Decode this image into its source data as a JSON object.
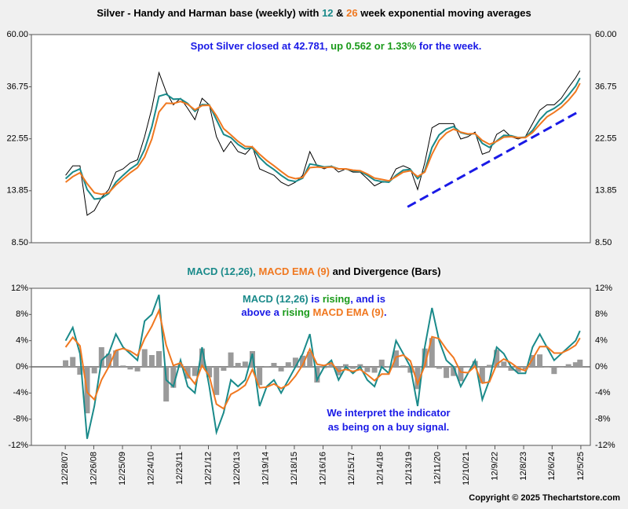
{
  "chart_data": [
    {
      "type": "line",
      "title": [
        {
          "text": "Silver - Handy and Harman base (weekly) with ",
          "color": "#000000"
        },
        {
          "text": "12",
          "color": "#1a8a8a"
        },
        {
          "text": " & ",
          "color": "#000000"
        },
        {
          "text": "26",
          "color": "#f07820"
        },
        {
          "text": " week exponential moving averages",
          "color": "#000000"
        }
      ],
      "annotations": [
        [
          {
            "text": "Spot Silver closed at 42.781, ",
            "color": "#1a1ae6"
          },
          {
            "text": "up 0.562 or 1.33%",
            "color": "#1a9a1a"
          },
          {
            "text": " for the week.",
            "color": "#1a1ae6"
          }
        ]
      ],
      "x": [
        2008,
        2008.25,
        2008.5,
        2008.75,
        2009,
        2009.25,
        2009.5,
        2009.75,
        2010,
        2010.25,
        2010.5,
        2010.75,
        2011,
        2011.25,
        2011.5,
        2011.75,
        2012,
        2012.25,
        2012.5,
        2012.75,
        2013,
        2013.25,
        2013.5,
        2013.75,
        2014,
        2014.25,
        2014.5,
        2014.75,
        2015,
        2015.25,
        2015.5,
        2015.75,
        2016,
        2016.25,
        2016.5,
        2016.75,
        2017,
        2017.25,
        2017.5,
        2017.75,
        2018,
        2018.25,
        2018.5,
        2018.75,
        2019,
        2019.25,
        2019.5,
        2019.75,
        2020,
        2020.25,
        2020.5,
        2020.75,
        2021,
        2021.25,
        2021.5,
        2021.75,
        2022,
        2022.25,
        2022.5,
        2022.75,
        2023,
        2023.25,
        2023.5,
        2023.75,
        2024,
        2024.25,
        2024.5,
        2024.75,
        2025,
        2025.25,
        2025.5,
        2025.75,
        2025.9
      ],
      "xlim": [
        2006.81,
        2026.26
      ],
      "ylim": [
        8.5,
        60
      ],
      "log_scale": true,
      "yticks": [
        {
          "value": 8.5,
          "label": "8.50"
        },
        {
          "value": 13.85,
          "label": "13.85"
        },
        {
          "value": 22.55,
          "label": "22.55"
        },
        {
          "value": 36.75,
          "label": "36.75"
        },
        {
          "value": 60,
          "label": "60.00"
        }
      ],
      "series": [
        {
          "color": "#000000",
          "values": [
            16,
            17.5,
            17.5,
            11,
            11.5,
            13,
            14,
            16.5,
            17,
            18,
            18.5,
            23,
            30,
            42,
            35,
            31,
            33,
            30,
            27,
            33,
            31,
            23,
            20,
            22,
            20,
            19.5,
            21,
            17,
            16.5,
            16,
            15,
            14.5,
            15,
            16,
            20,
            17.5,
            17,
            17.5,
            16.5,
            17,
            16.5,
            16.5,
            15.5,
            14.5,
            15,
            15,
            17,
            17.5,
            17,
            14,
            18,
            25,
            26,
            26,
            26,
            22.5,
            23,
            24,
            19.5,
            20,
            23.5,
            24.5,
            23,
            22.5,
            23,
            26,
            29.5,
            31,
            31,
            33,
            36.5,
            40,
            42.78
          ]
        },
        {
          "color": "#1a8a8a",
          "values": [
            15.5,
            16.5,
            17,
            14,
            12.8,
            12.9,
            13.5,
            15,
            16,
            17,
            17.8,
            20.4,
            25.2,
            33.6,
            34.3,
            32.7,
            32.8,
            31.4,
            29.2,
            31.1,
            31,
            27,
            23.5,
            22.8,
            21.4,
            20.5,
            20.7,
            18.9,
            17.7,
            16.9,
            16,
            15.3,
            15.1,
            15.6,
            17.8,
            17.6,
            17.3,
            17.4,
            17,
            17,
            16.7,
            16.6,
            16,
            15.3,
            15.1,
            15,
            16,
            16.8,
            16.9,
            15.5,
            16.7,
            20.8,
            23.4,
            24.7,
            25.3,
            23.9,
            23.5,
            23.7,
            21.6,
            20.8,
            22.1,
            23.3,
            23.2,
            22.8,
            22.9,
            24.4,
            27,
            29,
            30,
            31.5,
            34,
            37,
            39.9
          ]
        },
        {
          "color": "#f07820",
          "values": [
            15,
            15.8,
            16.4,
            14.8,
            13.6,
            13.4,
            13.6,
            14.6,
            15.5,
            16.4,
            17.2,
            19,
            22.5,
            29,
            31.5,
            31.4,
            32,
            31.2,
            29.6,
            30.8,
            30.9,
            28,
            24.8,
            23.4,
            22,
            21,
            20.9,
            19.5,
            18.4,
            17.5,
            16.6,
            15.8,
            15.5,
            15.7,
            17.2,
            17.3,
            17.2,
            17.3,
            17,
            17,
            16.8,
            16.7,
            16.2,
            15.6,
            15.4,
            15.2,
            15.8,
            16.5,
            16.7,
            15.8,
            16.5,
            19.5,
            22.2,
            23.8,
            24.7,
            24,
            23.6,
            23.7,
            22.2,
            21.4,
            22,
            22.9,
            23,
            22.8,
            22.8,
            23.9,
            25.8,
            27.7,
            28.9,
            30.3,
            32.4,
            35.1,
            38
          ]
        }
      ],
      "trendline": {
        "x": [
          2019.9,
          2025.9
        ],
        "values": [
          11.9,
          29.3
        ],
        "color": "#1a1ae6"
      }
    },
    {
      "type": "line",
      "title": [
        {
          "text": "MACD (12,26), ",
          "color": "#1a8a8a"
        },
        {
          "text": "MACD EMA (9)",
          "color": "#f07820"
        },
        {
          "text": " and Divergence (Bars)",
          "color": "#000000"
        }
      ],
      "annotations": [
        [
          {
            "text": "MACD (12,26)",
            "color": "#1a8a8a"
          },
          {
            "text": " is ",
            "color": "#1a1ae6"
          },
          {
            "text": "rising",
            "color": "#1a9a1a"
          },
          {
            "text": ", and is",
            "color": "#1a1ae6"
          }
        ],
        [
          {
            "text": "above a ",
            "color": "#1a1ae6"
          },
          {
            "text": "rising",
            "color": "#1a9a1a"
          },
          {
            "text": " MACD EMA (9)",
            "color": "#f07820"
          },
          {
            "text": ".",
            "color": "#1a1ae6"
          }
        ],
        [
          {
            "text": "We interpret the indicator",
            "color": "#1a1ae6"
          }
        ],
        [
          {
            "text": "as being on a buy signal.",
            "color": "#1a1ae6"
          }
        ]
      ],
      "x": [
        2008,
        2008.25,
        2008.5,
        2008.75,
        2009,
        2009.25,
        2009.5,
        2009.75,
        2010,
        2010.25,
        2010.5,
        2010.75,
        2011,
        2011.25,
        2011.5,
        2011.75,
        2012,
        2012.25,
        2012.5,
        2012.75,
        2013,
        2013.25,
        2013.5,
        2013.75,
        2014,
        2014.25,
        2014.5,
        2014.75,
        2015,
        2015.25,
        2015.5,
        2015.75,
        2016,
        2016.25,
        2016.5,
        2016.75,
        2017,
        2017.25,
        2017.5,
        2017.75,
        2018,
        2018.25,
        2018.5,
        2018.75,
        2019,
        2019.25,
        2019.5,
        2019.75,
        2020,
        2020.25,
        2020.5,
        2020.75,
        2021,
        2021.25,
        2021.5,
        2021.75,
        2022,
        2022.25,
        2022.5,
        2022.75,
        2023,
        2023.25,
        2023.5,
        2023.75,
        2024,
        2024.25,
        2024.5,
        2024.75,
        2025,
        2025.25,
        2025.5,
        2025.75,
        2025.9
      ],
      "xlim": [
        2006.81,
        2026.26
      ],
      "xticks": [
        {
          "value": 2007.99,
          "label": "12/28/07"
        },
        {
          "value": 2008.98,
          "label": "12/26/08"
        },
        {
          "value": 2009.98,
          "label": "12/25/09"
        },
        {
          "value": 2010.98,
          "label": "12/24/10"
        },
        {
          "value": 2011.98,
          "label": "12/23/11"
        },
        {
          "value": 2012.97,
          "label": "12/21/12"
        },
        {
          "value": 2013.97,
          "label": "12/20/13"
        },
        {
          "value": 2014.97,
          "label": "12/19/14"
        },
        {
          "value": 2015.96,
          "label": "12/18/15"
        },
        {
          "value": 2016.96,
          "label": "12/16/16"
        },
        {
          "value": 2017.96,
          "label": "12/15/17"
        },
        {
          "value": 2018.95,
          "label": "12/14/18"
        },
        {
          "value": 2019.95,
          "label": "12/13/19"
        },
        {
          "value": 2020.95,
          "label": "12/11/20"
        },
        {
          "value": 2021.94,
          "label": "12/10/21"
        },
        {
          "value": 2022.94,
          "label": "12/9/22"
        },
        {
          "value": 2023.94,
          "label": "12/8/23"
        },
        {
          "value": 2024.93,
          "label": "12/6/24"
        },
        {
          "value": 2025.93,
          "label": "12/5/25"
        }
      ],
      "ylim": [
        -12,
        12
      ],
      "yticks": [
        {
          "value": -12,
          "label": "-12%"
        },
        {
          "value": -8,
          "label": "-8%"
        },
        {
          "value": -4,
          "label": "-4%"
        },
        {
          "value": 0,
          "label": "0%"
        },
        {
          "value": 4,
          "label": "4%"
        },
        {
          "value": 8,
          "label": "8%"
        },
        {
          "value": 12,
          "label": "12%"
        }
      ],
      "series": [
        {
          "type": "bar",
          "color": "#9a9a9a",
          "values": [
            1,
            1.5,
            -1.2,
            -7.1,
            -1,
            3,
            2,
            2.5,
            0.2,
            -0.4,
            -0.7,
            2.7,
            1.8,
            2.4,
            -5.3,
            -3.2,
            0.4,
            -1.8,
            -1.4,
            2.8,
            -1.6,
            -4.3,
            -0.6,
            2.2,
            0.6,
            0.8,
            2.4,
            -2.8,
            0.1,
            0.6,
            -0.7,
            0.7,
            1.4,
            1.7,
            2.3,
            -2.4,
            -0.2,
            0.4,
            -1.3,
            0.4,
            -0.3,
            0.4,
            -0.8,
            -0.9,
            1.1,
            0.1,
            2.5,
            0.2,
            -0.9,
            -3.4,
            2.8,
            4.4,
            -0.3,
            -1.7,
            -1.4,
            -2.2,
            -0.1,
            0.9,
            -2.5,
            0.3,
            2.6,
            0.8,
            -0.6,
            -0.8,
            -0.4,
            1.8,
            1.9,
            -0.1,
            -1.1,
            -0.1,
            0.4,
            0.7,
            1.1
          ]
        },
        {
          "type": "line",
          "color": "#1a8a8a",
          "values": [
            4,
            6,
            2,
            -11,
            -6,
            1,
            2,
            5,
            3,
            2,
            1,
            7,
            8,
            11,
            -2,
            -3,
            1,
            -3,
            -4,
            3,
            -3,
            -10,
            -7,
            -2,
            -3,
            -2,
            2,
            -6,
            -3,
            -2,
            -4,
            -2,
            0,
            2,
            5,
            -2,
            0,
            1,
            -2,
            0,
            -1,
            0,
            -2,
            -3,
            0,
            -1,
            4,
            2,
            0,
            -6,
            3,
            9,
            4,
            1,
            0,
            -3,
            -1,
            1,
            -5,
            -2,
            3,
            2,
            0,
            -1,
            -1,
            3,
            5,
            3,
            1,
            2,
            3,
            4,
            5.5
          ]
        },
        {
          "type": "line",
          "color": "#f07820",
          "values": [
            3,
            4.5,
            3.2,
            -3.9,
            -5,
            -2,
            0,
            2.5,
            2.8,
            2.4,
            1.7,
            4.3,
            6.2,
            8.6,
            3.3,
            0.2,
            0.6,
            -1.2,
            -2.6,
            0.2,
            -1.4,
            -5.7,
            -6.4,
            -4.2,
            -3.6,
            -2.8,
            -0.4,
            -3.2,
            -3.1,
            -2.6,
            -3.3,
            -2.7,
            -1.4,
            0.3,
            2.7,
            0.4,
            0.2,
            0.6,
            -0.7,
            -0.4,
            -0.7,
            -0.4,
            -1.2,
            -2.1,
            -1.1,
            -1.1,
            1.5,
            1.8,
            0.9,
            -2.6,
            0.2,
            4.6,
            4.3,
            2.7,
            1.4,
            -0.8,
            -0.9,
            0.1,
            -2.5,
            -2.3,
            0.4,
            1.2,
            0.6,
            -0.2,
            -0.6,
            1.2,
            3.1,
            3.1,
            2.1,
            2.1,
            2.6,
            3.3,
            4.4
          ]
        }
      ]
    }
  ],
  "footer": "Copyright © 2025 Thechartstore.com"
}
